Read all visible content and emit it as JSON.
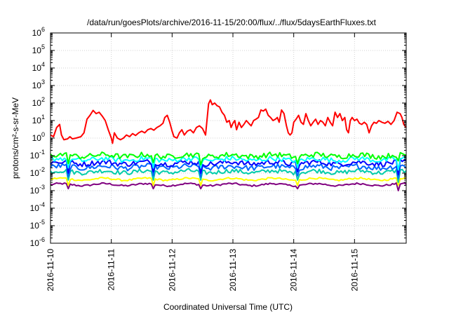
{
  "chart_data": {
    "type": "line",
    "title": "/data/run/goesPlots/archive/2016-11-15/20:00/flux/../flux/5daysEarthFluxes.txt",
    "xlabel": "Coordinated Universal Time (UTC)",
    "ylabel": "protons/cm²-s-sr-MeV",
    "yscale": "log",
    "ylim": [
      1e-06,
      1000000.0
    ],
    "xlim": [
      0,
      5.85
    ],
    "x_origin_date": "2016-11-10",
    "x_ticks": [
      {
        "value": 0,
        "label": "2016-11-10"
      },
      {
        "value": 1,
        "label": "2016-11-11"
      },
      {
        "value": 2,
        "label": "2016-11-12"
      },
      {
        "value": 3,
        "label": "2016-11-13"
      },
      {
        "value": 4,
        "label": "2016-11-14"
      },
      {
        "value": 5,
        "label": "2016-11-15"
      }
    ],
    "y_ticks": [
      {
        "value": 1e-06,
        "base": "10",
        "exp": "-6"
      },
      {
        "value": 1e-05,
        "base": "10",
        "exp": "-5"
      },
      {
        "value": 0.0001,
        "base": "10",
        "exp": "-4"
      },
      {
        "value": 0.001,
        "base": "10",
        "exp": "-3"
      },
      {
        "value": 0.01,
        "base": "10",
        "exp": "-2"
      },
      {
        "value": 0.1,
        "base": "10",
        "exp": "-1"
      },
      {
        "value": 1,
        "base": "10",
        "exp": "0"
      },
      {
        "value": 10.0,
        "base": "10",
        "exp": "1"
      },
      {
        "value": 100.0,
        "base": "10",
        "exp": "2"
      },
      {
        "value": 1000.0,
        "base": "10",
        "exp": "3"
      },
      {
        "value": 10000.0,
        "base": "10",
        "exp": "4"
      },
      {
        "value": 100000.0,
        "base": "10",
        "exp": "5"
      },
      {
        "value": 1000000.0,
        "base": "10",
        "exp": "6"
      }
    ],
    "grid": true,
    "series": [
      {
        "color": "#ff0000",
        "points": [
          [
            0.0,
            1.5
          ],
          [
            0.05,
            1.2
          ],
          [
            0.1,
            4.0
          ],
          [
            0.15,
            6.0
          ],
          [
            0.18,
            1.5
          ],
          [
            0.22,
            0.8
          ],
          [
            0.28,
            0.9
          ],
          [
            0.32,
            1.2
          ],
          [
            0.36,
            0.9
          ],
          [
            0.42,
            1.0
          ],
          [
            0.5,
            1.2
          ],
          [
            0.55,
            2.0
          ],
          [
            0.6,
            12
          ],
          [
            0.65,
            20
          ],
          [
            0.7,
            38
          ],
          [
            0.75,
            25
          ],
          [
            0.8,
            30
          ],
          [
            0.85,
            18
          ],
          [
            0.9,
            10
          ],
          [
            0.95,
            3.0
          ],
          [
            1.0,
            1.0
          ],
          [
            1.02,
            0.5
          ],
          [
            1.05,
            2.0
          ],
          [
            1.1,
            1.0
          ],
          [
            1.15,
            0.8
          ],
          [
            1.2,
            1.0
          ],
          [
            1.25,
            1.5
          ],
          [
            1.3,
            1.2
          ],
          [
            1.35,
            1.8
          ],
          [
            1.4,
            1.4
          ],
          [
            1.45,
            2.0
          ],
          [
            1.5,
            2.5
          ],
          [
            1.55,
            2.0
          ],
          [
            1.6,
            3.0
          ],
          [
            1.65,
            3.5
          ],
          [
            1.7,
            2.8
          ],
          [
            1.75,
            4.0
          ],
          [
            1.8,
            5.0
          ],
          [
            1.85,
            7.0
          ],
          [
            1.88,
            15
          ],
          [
            1.92,
            20
          ],
          [
            1.96,
            8.0
          ],
          [
            2.0,
            2.5
          ],
          [
            2.03,
            1.2
          ],
          [
            2.08,
            1.0
          ],
          [
            2.12,
            2.0
          ],
          [
            2.16,
            3.0
          ],
          [
            2.2,
            1.5
          ],
          [
            2.25,
            2.5
          ],
          [
            2.3,
            3.0
          ],
          [
            2.35,
            2.0
          ],
          [
            2.4,
            4.0
          ],
          [
            2.45,
            5.0
          ],
          [
            2.5,
            3.5
          ],
          [
            2.55,
            1.5
          ],
          [
            2.6,
            90
          ],
          [
            2.63,
            150
          ],
          [
            2.66,
            80
          ],
          [
            2.7,
            100
          ],
          [
            2.74,
            70
          ],
          [
            2.78,
            60
          ],
          [
            2.82,
            30
          ],
          [
            2.86,
            20
          ],
          [
            2.9,
            8.0
          ],
          [
            2.94,
            10
          ],
          [
            2.97,
            4.0
          ],
          [
            3.0,
            7.0
          ],
          [
            3.03,
            10
          ],
          [
            3.06,
            3.0
          ],
          [
            3.1,
            8.0
          ],
          [
            3.14,
            4.0
          ],
          [
            3.18,
            6.0
          ],
          [
            3.22,
            10
          ],
          [
            3.26,
            7.0
          ],
          [
            3.3,
            5.0
          ],
          [
            3.34,
            10
          ],
          [
            3.38,
            12
          ],
          [
            3.42,
            15
          ],
          [
            3.46,
            40
          ],
          [
            3.5,
            35
          ],
          [
            3.54,
            45
          ],
          [
            3.58,
            20
          ],
          [
            3.62,
            15
          ],
          [
            3.66,
            10
          ],
          [
            3.7,
            12
          ],
          [
            3.73,
            15
          ],
          [
            3.76,
            8.0
          ],
          [
            3.8,
            40
          ],
          [
            3.84,
            25
          ],
          [
            3.88,
            5.0
          ],
          [
            3.91,
            2.0
          ],
          [
            3.94,
            1.5
          ],
          [
            3.97,
            2.0
          ],
          [
            4.0,
            8.0
          ],
          [
            4.04,
            12
          ],
          [
            4.08,
            20
          ],
          [
            4.12,
            8.0
          ],
          [
            4.16,
            6.0
          ],
          [
            4.2,
            25
          ],
          [
            4.24,
            10
          ],
          [
            4.28,
            5.0
          ],
          [
            4.32,
            8.0
          ],
          [
            4.36,
            12
          ],
          [
            4.4,
            6.0
          ],
          [
            4.44,
            10
          ],
          [
            4.48,
            8.0
          ],
          [
            4.52,
            5.0
          ],
          [
            4.56,
            15
          ],
          [
            4.6,
            8.0
          ],
          [
            4.64,
            5.0
          ],
          [
            4.68,
            30
          ],
          [
            4.72,
            15
          ],
          [
            4.76,
            25
          ],
          [
            4.8,
            10
          ],
          [
            4.84,
            15
          ],
          [
            4.87,
            3.0
          ],
          [
            4.9,
            2.0
          ],
          [
            4.93,
            10
          ],
          [
            4.96,
            15
          ],
          [
            5.0,
            10
          ],
          [
            5.04,
            12
          ],
          [
            5.08,
            7.0
          ],
          [
            5.12,
            6.0
          ],
          [
            5.16,
            8.0
          ],
          [
            5.2,
            6.0
          ],
          [
            5.24,
            2.0
          ],
          [
            5.28,
            5.0
          ],
          [
            5.32,
            8.0
          ],
          [
            5.36,
            7.0
          ],
          [
            5.4,
            10
          ],
          [
            5.45,
            8.0
          ],
          [
            5.5,
            7.0
          ],
          [
            5.55,
            9.0
          ],
          [
            5.6,
            6.0
          ],
          [
            5.65,
            10
          ],
          [
            5.7,
            30
          ],
          [
            5.75,
            25
          ],
          [
            5.78,
            15
          ],
          [
            5.81,
            6.0
          ],
          [
            5.85,
            4.0
          ]
        ]
      },
      {
        "color": "#00ff00",
        "base": 0.1,
        "amplitude": 0.3,
        "dips": [
          [
            0.28,
            0.035
          ],
          [
            1.68,
            0.04
          ],
          [
            2.48,
            0.03
          ],
          [
            4.06,
            0.035
          ],
          [
            5.72,
            0.05
          ]
        ]
      },
      {
        "color": "#00ffff",
        "base": 0.06,
        "amplitude": 0.28,
        "dips": [
          [
            0.28,
            0.02
          ],
          [
            1.68,
            0.02
          ],
          [
            2.48,
            0.02
          ],
          [
            4.06,
            0.02
          ],
          [
            5.72,
            0.015
          ]
        ]
      },
      {
        "color": "#0000ff",
        "base": 0.038,
        "amplitude": 0.3,
        "dips": [
          [
            0.28,
            0.01
          ],
          [
            1.68,
            0.012
          ],
          [
            2.48,
            0.01
          ],
          [
            4.06,
            0.012
          ],
          [
            5.72,
            0.008
          ]
        ]
      },
      {
        "color": "#0066ff",
        "base": 0.022,
        "amplitude": 0.3,
        "dips": [
          [
            0.28,
            0.006
          ],
          [
            1.68,
            0.007
          ],
          [
            2.48,
            0.006
          ],
          [
            4.06,
            0.007
          ],
          [
            5.72,
            0.005
          ]
        ]
      },
      {
        "color": "#00ccaa",
        "base": 0.012,
        "amplitude": 0.25,
        "dips": [
          [
            0.28,
            0.004
          ],
          [
            1.68,
            0.004
          ],
          [
            2.48,
            0.004
          ],
          [
            4.06,
            0.004
          ],
          [
            5.72,
            0.003
          ]
        ]
      },
      {
        "color": "#ffff00",
        "base": 0.0045,
        "amplitude": 0.1,
        "dips": [
          [
            0.28,
            0.002
          ],
          [
            1.68,
            0.002
          ],
          [
            2.48,
            0.002
          ],
          [
            4.06,
            0.002
          ],
          [
            5.72,
            0.002
          ]
        ]
      },
      {
        "color": "#800080",
        "base": 0.0022,
        "amplitude": 0.1,
        "dips": [
          [
            0.28,
            0.0013
          ],
          [
            1.68,
            0.0013
          ],
          [
            2.48,
            0.0013
          ],
          [
            4.06,
            0.0013
          ],
          [
            5.72,
            0.001
          ]
        ]
      }
    ]
  }
}
